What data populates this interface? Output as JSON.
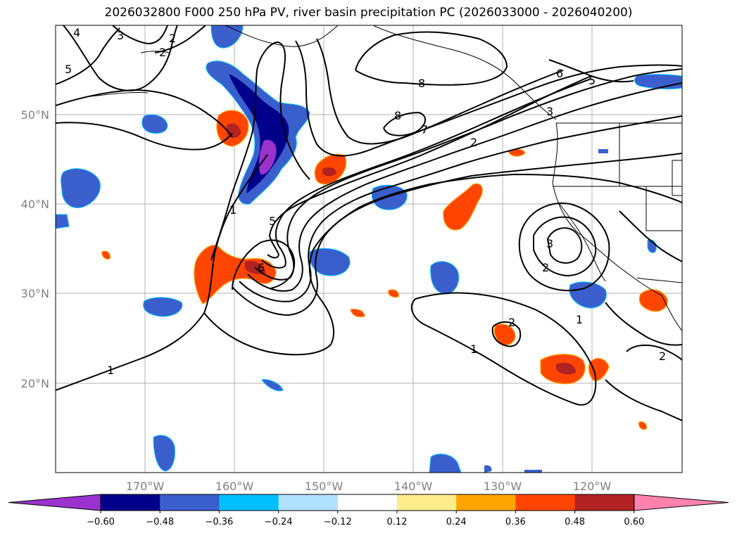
{
  "title": "2026032800 F000 250 hPa PV, river basin precipitation PC (2026033000 - 2026040200)",
  "map": {
    "lat_labels": [
      "50°N",
      "40°N",
      "30°N",
      "20°N"
    ],
    "lon_labels": [
      "170°W",
      "160°W",
      "150°W",
      "140°W",
      "130°W",
      "120°W"
    ],
    "contour_labels": [
      "4",
      "3",
      "2",
      "5",
      "2",
      "8",
      "6",
      "5",
      "8",
      "7",
      "2",
      "3",
      "1",
      "5",
      "3",
      "2",
      "6",
      "1",
      "2",
      "1",
      "2",
      "1"
    ]
  },
  "colorbar": {
    "colors": [
      "#9a32cd",
      "#00008b",
      "#3a5fcd",
      "#00bfff",
      "#b0e2ff",
      "#ffffff",
      "#ffec8b",
      "#ffa500",
      "#ff4500",
      "#b22222",
      "#ff82ab"
    ],
    "labels": [
      "−0.60",
      "−0.48",
      "−0.36",
      "−0.24",
      "−0.12",
      "0.12",
      "0.24",
      "0.36",
      "0.48",
      "0.60"
    ]
  }
}
